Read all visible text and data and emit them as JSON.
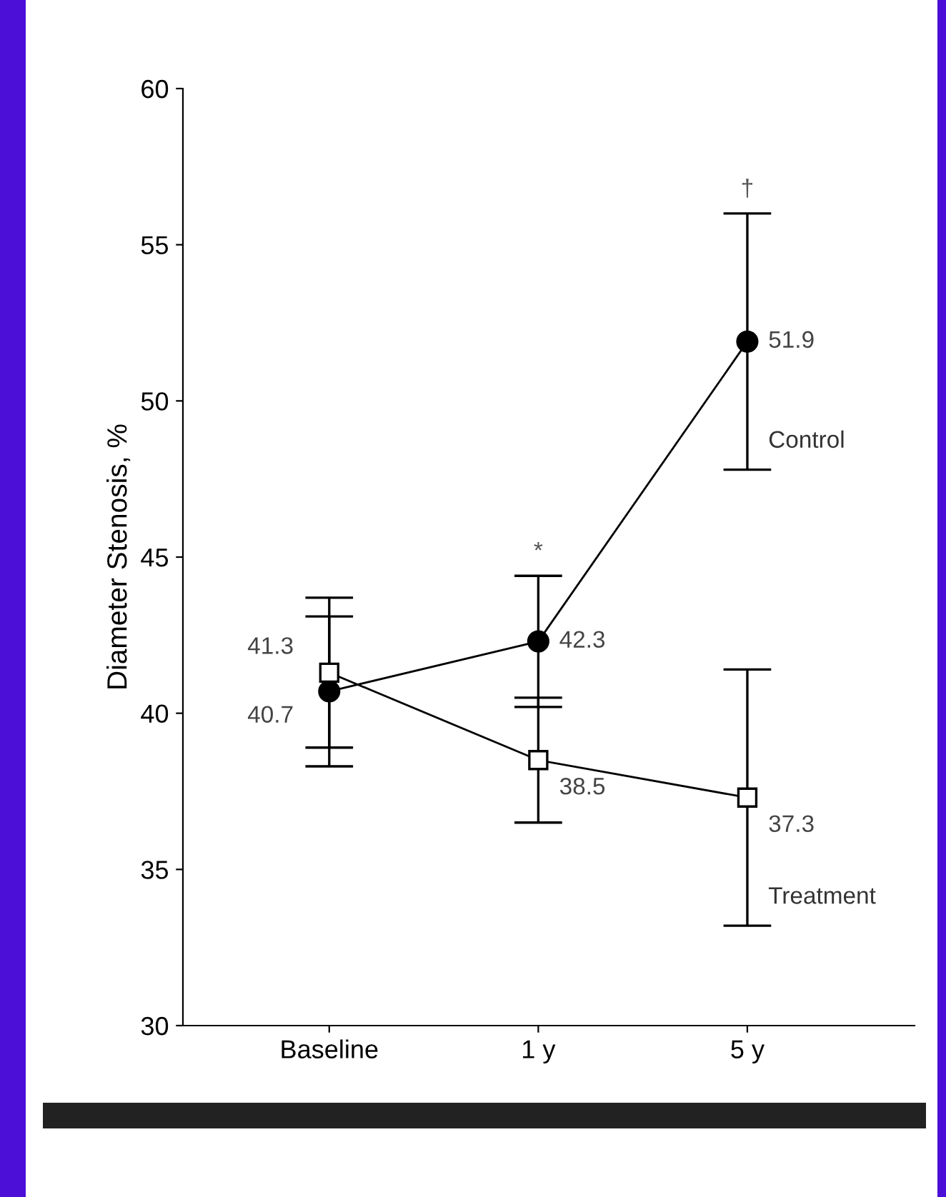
{
  "chart_data": {
    "type": "line",
    "ylabel": "Diameter Stenosis, %",
    "categories": [
      "Baseline",
      "1 y",
      "5 y"
    ],
    "series": [
      {
        "name": "Control",
        "color": "#000000",
        "marker": "circle",
        "values": [
          40.7,
          42.3,
          51.9
        ],
        "errors": [
          2.4,
          2.1,
          4.1
        ]
      },
      {
        "name": "Treatment",
        "color": "#000000",
        "marker": "square",
        "values": [
          41.3,
          38.5,
          37.3
        ],
        "errors": [
          2.4,
          2.0,
          4.1
        ]
      }
    ],
    "ylim": [
      30,
      60
    ],
    "yticks": [
      30,
      35,
      40,
      45,
      50,
      55,
      60
    ],
    "grid": false,
    "legend": false,
    "data_labels": true,
    "annotations": [
      {
        "text": "*",
        "x": "1 y",
        "y": 44.4
      },
      {
        "text": "†",
        "x": "5 y",
        "y": 56.0
      }
    ]
  }
}
